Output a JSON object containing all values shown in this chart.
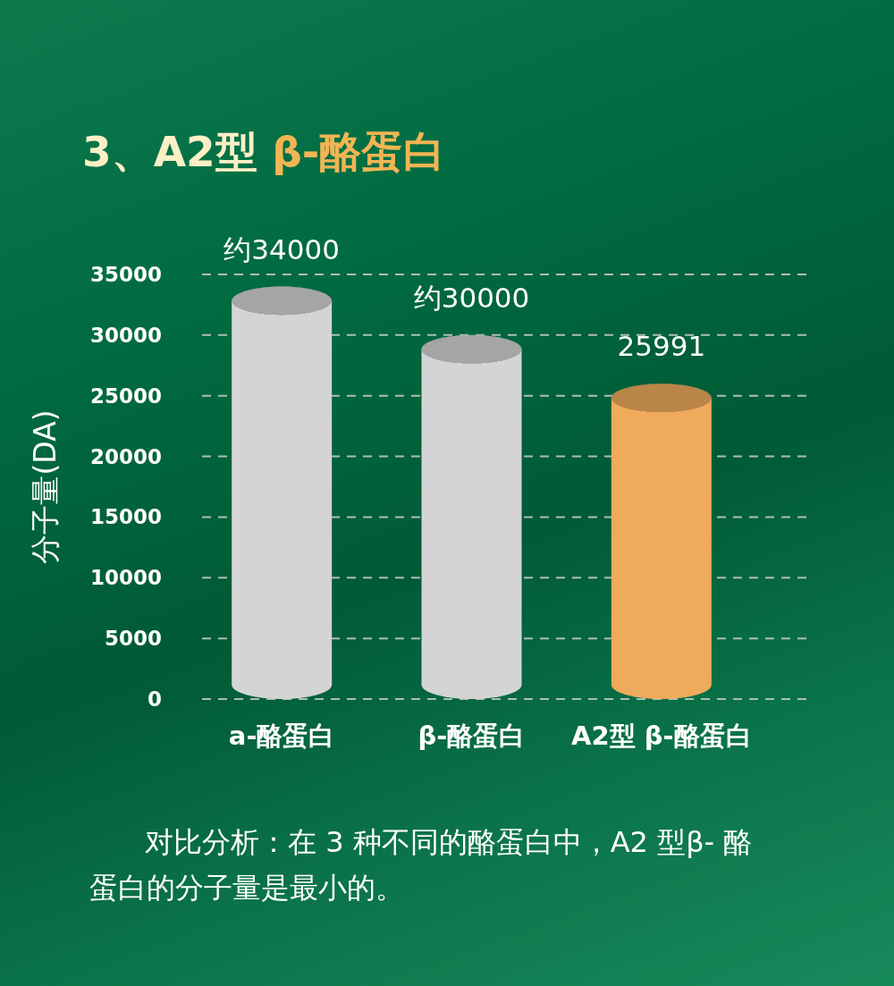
{
  "chart_data": {
    "type": "bar",
    "title": "3、A2型 β-酪蛋白",
    "ylabel": "分子量(DA)",
    "categories": [
      "a-酪蛋白",
      "β-酪蛋白",
      "A2型 β-酪蛋白"
    ],
    "values": [
      34000,
      30000,
      25991
    ],
    "colors": [
      "#d4d4d4",
      "#d4d4d4",
      "#efaa5c"
    ],
    "value_labels": [
      "约34000",
      "约30000",
      "25991"
    ],
    "ylim": [
      0,
      35000
    ],
    "yticks": [
      0,
      5000,
      10000,
      15000,
      20000,
      25000,
      30000,
      35000
    ],
    "grid": "y",
    "annotations": [
      "对比分析：在 3 种不同的酪蛋白中，A2 型β- 酪蛋白的分子量是最小的。"
    ]
  }
}
